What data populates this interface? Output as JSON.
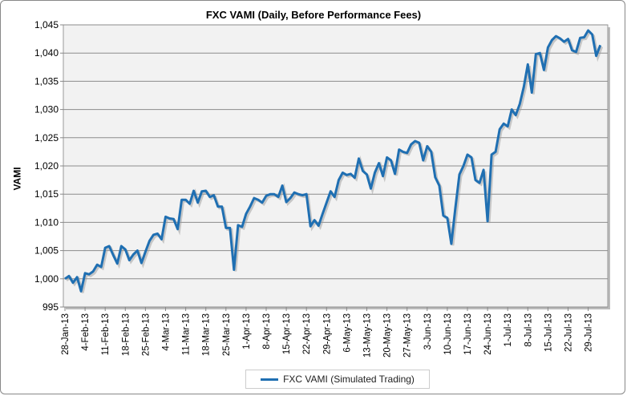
{
  "chart_data": {
    "type": "line",
    "title": "FXC VAMI (Daily, Before Performance Fees)",
    "xlabel": "",
    "ylabel": "VAMI",
    "ylim": [
      995,
      1045
    ],
    "yticks": [
      "995",
      "1,000",
      "1,005",
      "1,010",
      "1,015",
      "1,020",
      "1,025",
      "1,030",
      "1,035",
      "1,040",
      "1,045"
    ],
    "xtick_labels": [
      "28-Jan-13",
      "4-Feb-13",
      "11-Feb-13",
      "18-Feb-13",
      "25-Feb-13",
      "4-Mar-13",
      "11-Mar-13",
      "18-Mar-13",
      "25-Mar-13",
      "1-Apr-13",
      "8-Apr-13",
      "15-Apr-13",
      "22-Apr-13",
      "29-Apr-13",
      "6-May-13",
      "13-May-13",
      "20-May-13",
      "27-May-13",
      "3-Jun-13",
      "10-Jun-13",
      "17-Jun-13",
      "24-Jun-13",
      "1-Jul-13",
      "8-Jul-13",
      "15-Jul-13",
      "22-Jul-13",
      "29-Jul-13"
    ],
    "grid": true,
    "legend_position": "bottom",
    "series": [
      {
        "name": "FXC VAMI (Simulated Trading)",
        "color": "#1f6fb2",
        "values": [
          1000,
          1000.5,
          999.3,
          1000.3,
          997.8,
          1001,
          1000.8,
          1001.3,
          1002.5,
          1002.1,
          1005.5,
          1005.8,
          1004.2,
          1002.7,
          1005.8,
          1005.2,
          1003.3,
          1004.3,
          1005,
          1002.8,
          1004.8,
          1006.7,
          1007.8,
          1008,
          1007,
          1011,
          1010.7,
          1010.6,
          1008.8,
          1014,
          1014,
          1013.3,
          1015.6,
          1013.5,
          1015.5,
          1015.6,
          1014.5,
          1014.8,
          1012.8,
          1012.8,
          1009,
          1009,
          1001.6,
          1009.5,
          1009.2,
          1011.5,
          1012.8,
          1014.3,
          1014,
          1013.5,
          1014.7,
          1015,
          1015,
          1014.5,
          1016.5,
          1013.6,
          1014.3,
          1015.3,
          1015,
          1014.8,
          1015,
          1009.3,
          1010.4,
          1009.4,
          1011.5,
          1013.5,
          1015.5,
          1014.5,
          1017.5,
          1018.8,
          1018.4,
          1018.6,
          1017.9,
          1021.3,
          1019.1,
          1018.5,
          1016,
          1018.8,
          1020.5,
          1018.2,
          1021.5,
          1021,
          1018.6,
          1022.9,
          1022.5,
          1022.3,
          1023.8,
          1024.4,
          1024.1,
          1021,
          1023.5,
          1022.5,
          1018,
          1016.5,
          1011.2,
          1010.8,
          1006.2,
          1012.5,
          1018.5,
          1020,
          1022,
          1021.5,
          1017.5,
          1017,
          1019.3,
          1010.2,
          1022,
          1022.5,
          1026.5,
          1027.5,
          1027,
          1030,
          1029,
          1031,
          1034,
          1038,
          1033,
          1039.8,
          1040,
          1037,
          1041,
          1042.3,
          1043,
          1042.6,
          1042,
          1042.5,
          1040.5,
          1040.2,
          1042.7,
          1042.8,
          1044,
          1043.3,
          1039.5,
          1041.4
        ]
      }
    ]
  }
}
